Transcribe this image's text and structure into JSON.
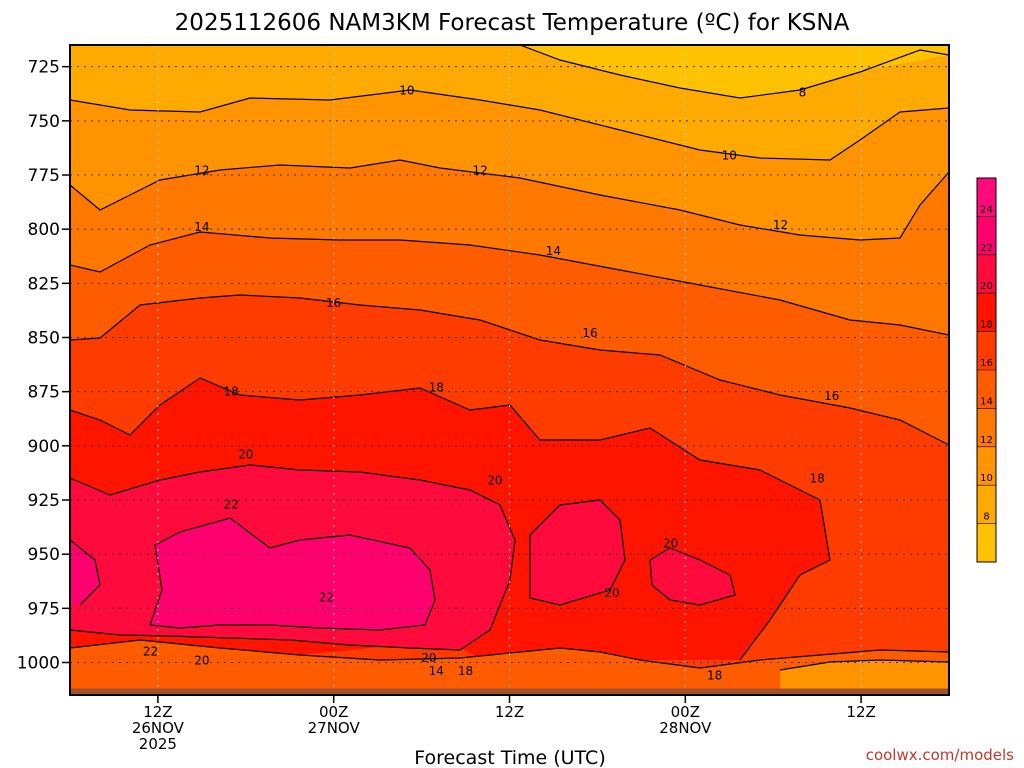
{
  "title": "2025112606 NAM3KM Forecast Temperature (ºC) for KSNA",
  "xlabel": "Forecast Time (UTC)",
  "credit": "coolwx.com/models",
  "chart_data": {
    "type": "heatmap",
    "title": "2025112606 NAM3KM Forecast Temperature (ºC) for KSNA",
    "xlabel": "Forecast Time (UTC)",
    "ylabel": "",
    "y_axis": {
      "unit": "hPa",
      "range": [
        1015,
        715
      ],
      "ticks": [
        725,
        750,
        775,
        800,
        825,
        850,
        875,
        900,
        925,
        950,
        975,
        1000
      ]
    },
    "x_axis": {
      "range": [
        0,
        60
      ],
      "ticks": [
        {
          "hour": 6,
          "lines": [
            "12Z",
            "26NOV",
            "2025"
          ]
        },
        {
          "hour": 18,
          "lines": [
            "00Z",
            "27NOV"
          ]
        },
        {
          "hour": 30,
          "lines": [
            "12Z"
          ]
        },
        {
          "hour": 42,
          "lines": [
            "00Z",
            "28NOV"
          ]
        },
        {
          "hour": 54,
          "lines": [
            "12Z"
          ]
        }
      ]
    },
    "grid": true,
    "legend": "right",
    "colorbar": {
      "labels": [
        8,
        10,
        12,
        14,
        16,
        18,
        20,
        22,
        24
      ],
      "bins": [
        {
          "from": 6,
          "to": 8,
          "color": "#ffc200"
        },
        {
          "from": 8,
          "to": 10,
          "color": "#ffaa00"
        },
        {
          "from": 10,
          "to": 12,
          "color": "#ff9400"
        },
        {
          "from": 12,
          "to": 14,
          "color": "#ff7800"
        },
        {
          "from": 14,
          "to": 16,
          "color": "#ff5c00"
        },
        {
          "from": 16,
          "to": 18,
          "color": "#ff3c00"
        },
        {
          "from": 18,
          "to": 20,
          "color": "#ff1400"
        },
        {
          "from": 20,
          "to": 22,
          "color": "#ff0a3c"
        },
        {
          "from": 22,
          "to": 24,
          "color": "#ff006e"
        },
        {
          "from": 24,
          "to": 26,
          "color": "#ff0a7a"
        }
      ]
    },
    "contour_labels": [
      {
        "text": "10",
        "hour": 23,
        "p": 736
      },
      {
        "text": "8",
        "hour": 50,
        "p": 737
      },
      {
        "text": "12",
        "hour": 9,
        "p": 773
      },
      {
        "text": "12",
        "hour": 28,
        "p": 773
      },
      {
        "text": "10",
        "hour": 45,
        "p": 766
      },
      {
        "text": "14",
        "hour": 9,
        "p": 799
      },
      {
        "text": "12",
        "hour": 48.5,
        "p": 798
      },
      {
        "text": "14",
        "hour": 33,
        "p": 810
      },
      {
        "text": "16",
        "hour": 18,
        "p": 834
      },
      {
        "text": "16",
        "hour": 35.5,
        "p": 848
      },
      {
        "text": "18",
        "hour": 11,
        "p": 875
      },
      {
        "text": "18",
        "hour": 25,
        "p": 873
      },
      {
        "text": "16",
        "hour": 52,
        "p": 877
      },
      {
        "text": "20",
        "hour": 12,
        "p": 904
      },
      {
        "text": "22",
        "hour": 11,
        "p": 927
      },
      {
        "text": "20",
        "hour": 29,
        "p": 916
      },
      {
        "text": "18",
        "hour": 51,
        "p": 915
      },
      {
        "text": "20",
        "hour": 41,
        "p": 945
      },
      {
        "text": "22",
        "hour": 17.5,
        "p": 970
      },
      {
        "text": "20",
        "hour": 37,
        "p": 968
      },
      {
        "text": "22",
        "hour": 5.5,
        "p": 995
      },
      {
        "text": "20",
        "hour": 9,
        "p": 999
      },
      {
        "text": "20",
        "hour": 24.5,
        "p": 998
      },
      {
        "text": "14",
        "hour": 25,
        "p": 1004
      },
      {
        "text": "18",
        "hour": 27,
        "p": 1004
      },
      {
        "text": "18",
        "hour": 44,
        "p": 1006
      }
    ],
    "surface": {
      "color": "#a0522d",
      "pressure": 1012
    }
  }
}
